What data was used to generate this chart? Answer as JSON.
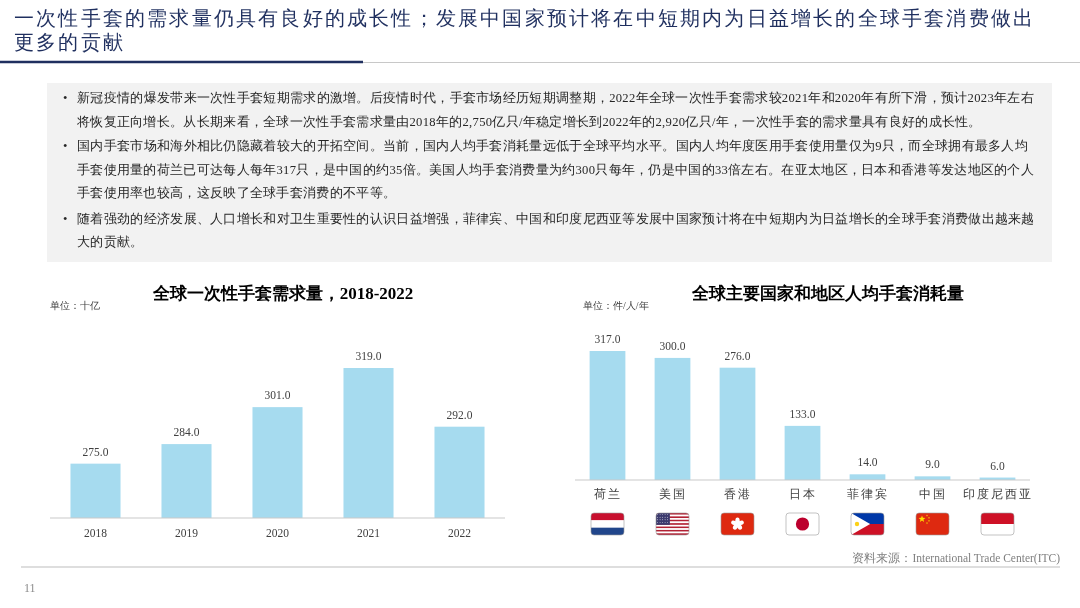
{
  "chart_data": [
    {
      "type": "other",
      "title": "一次性手套的需求量仍具有良好的成长性；发展中国家预计将在中短期内为日益增长的全球手套消费做出更多的贡献",
      "annotations": [
        "• 新冠疫情的爆发带来一次性手套短期需求的激增。后疫情时代，手套市场经历短期调整期，2022年全球一次性手套需求较2021年和2020年有所下滑，预计2023年左右将恢复正向增长。从长期来看，全球一次性手套需求量由2018年的2,750亿只/年稳定增长到2022年的2,920亿只/年，一次性手套的需求量具有良好的成长性。",
        "• 国内手套市场和海外相比仍隐藏着较大的开拓空间。当前，国内人均手套消耗量远低于全球平均水平。国内人均年度医用手套使用量仅为9只，而全球拥有最多人均手套使用量的荷兰已可达每人每年317只，是中国的约35倍。美国人均手套消费量为约300只每年，仍是中国的33倍左右。在亚太地区，日本和香港等发达地区的个人手套使用率也较高，这反映了全球手套消费的不平等。",
        "• 随着强劲的经济发展、人口增长和对卫生重要性的认识日益增强，菲律宾、中国和印度尼西亚等发展中国家预计将在中短期内为日益增长的全球手套消费做出越来越大的贡献。"
      ]
    },
    {
      "type": "bar",
      "title": "全球一次性手套需求量，2018-2022",
      "ylabel": "单位：十亿",
      "categories": [
        "2018",
        "2019",
        "2020",
        "2021",
        "2022"
      ],
      "values": [
        275,
        284,
        301,
        319,
        292
      ],
      "color": "#a6dbef",
      "value_labels": [
        "275.0",
        "284.0",
        "301.0",
        "319.0",
        "292.0"
      ],
      "ylim": [
        250,
        319
      ],
      "tick_labels": "x",
      "annotations": [
        "11"
      ]
    },
    {
      "type": "bar",
      "title": "全球主要国家和地区人均手套消耗量",
      "ylabel": "单位：件/人/年",
      "categories": [
        "荷兰",
        "美国",
        "香港",
        "日本",
        "菲律宾",
        "中国",
        "印度尼西亚"
      ],
      "values": [
        317,
        300,
        276,
        133,
        14,
        9,
        6
      ],
      "color": "#a6dbef",
      "value_labels": [
        "317.0",
        "300.0",
        "276.0",
        "133.0",
        "14.0",
        "9.0",
        "6.0"
      ],
      "ylim": [
        0,
        317
      ],
      "tick_labels": "x",
      "annotations": [
        "资料来源：International Trade Center(ITC)"
      ]
    }
  ]
}
